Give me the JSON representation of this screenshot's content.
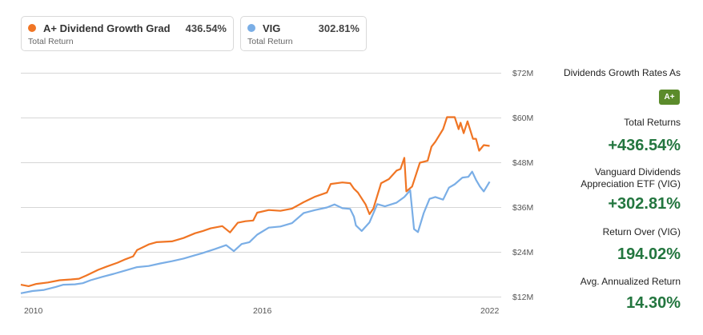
{
  "legend": [
    {
      "name": "A+ Dividend Growth Grad",
      "value": "436.54%",
      "sublabel": "Total Return",
      "color": "#f07524"
    },
    {
      "name": "VIG",
      "value": "302.81%",
      "sublabel": "Total Return",
      "color": "#7aaee6"
    }
  ],
  "sidebar": {
    "grade_label": "Dividends Growth Rates As",
    "grade_badge": "A+",
    "grade_badge_color": "#5b8b2b",
    "total_returns_label": "Total Returns",
    "total_returns_value": "+436.54%",
    "vig_label_line1": "Vanguard Dividends",
    "vig_label_line2": "Appreciation ETF (VIG)",
    "vig_value": "+302.81%",
    "return_over_label": "Return Over (VIG)",
    "return_over_value": "194.02%",
    "avg_annualized_label": "Avg. Annualized Return",
    "avg_annualized_value": "14.30%",
    "value_color": "#23763f"
  },
  "chart_data": {
    "type": "line",
    "title": "",
    "xlabel": "",
    "ylabel": "",
    "x_ticks": [
      "2010",
      "2016",
      "2022"
    ],
    "y_ticks": [
      "$12M",
      "$24M",
      "$36M",
      "$48M",
      "$60M",
      "$72M"
    ],
    "ylim": [
      12,
      72
    ],
    "xlim": [
      2009.9,
      2022.3
    ],
    "grid": true,
    "legend_position": "top",
    "series": [
      {
        "name": "A+ Dividend Growth Grad",
        "color": "#f07524",
        "x": [
          2009.9,
          2010.1,
          2010.3,
          2010.6,
          2010.9,
          2011.2,
          2011.4,
          2011.6,
          2011.9,
          2012.1,
          2012.4,
          2012.6,
          2012.8,
          2012.9,
          2013.2,
          2013.4,
          2013.8,
          2014.1,
          2014.4,
          2014.6,
          2014.8,
          2015.1,
          2015.3,
          2015.5,
          2015.7,
          2015.9,
          2016.0,
          2016.3,
          2016.6,
          2016.9,
          2017.2,
          2017.5,
          2017.8,
          2017.9,
          2018.2,
          2018.4,
          2018.5,
          2018.6,
          2018.8,
          2018.9,
          2019.0,
          2019.2,
          2019.4,
          2019.6,
          2019.7,
          2019.8,
          2019.85,
          2020.0,
          2020.2,
          2020.4,
          2020.5,
          2020.6,
          2020.8,
          2020.9,
          2021.1,
          2021.2,
          2021.25,
          2021.33,
          2021.43,
          2021.57,
          2021.65,
          2021.73,
          2021.85,
          2022.0
        ],
        "values": [
          15.2,
          14.8,
          15.4,
          15.8,
          16.4,
          16.6,
          16.8,
          17.7,
          19.2,
          20.0,
          21.1,
          22.0,
          22.8,
          24.5,
          26.0,
          26.6,
          26.8,
          27.7,
          29.0,
          29.6,
          30.3,
          30.9,
          29.2,
          31.8,
          32.2,
          32.4,
          34.5,
          35.2,
          35.0,
          35.6,
          37.3,
          38.8,
          39.9,
          42.2,
          42.6,
          42.4,
          40.9,
          39.9,
          36.7,
          34.1,
          35.6,
          42.4,
          43.5,
          45.8,
          46.2,
          49.2,
          40.2,
          41.5,
          47.9,
          48.4,
          52.2,
          53.5,
          56.9,
          60.1,
          60.1,
          56.9,
          58.6,
          55.8,
          59.0,
          54.3,
          54.3,
          51.1,
          52.6,
          52.4
        ]
      },
      {
        "name": "VIG",
        "color": "#7aaee6",
        "x": [
          2009.9,
          2010.2,
          2010.5,
          2010.8,
          2011.0,
          2011.3,
          2011.5,
          2011.7,
          2012.0,
          2012.3,
          2012.6,
          2012.9,
          2013.2,
          2013.5,
          2013.8,
          2014.1,
          2014.4,
          2014.6,
          2014.9,
          2015.2,
          2015.4,
          2015.6,
          2015.8,
          2016.0,
          2016.3,
          2016.6,
          2016.9,
          2017.2,
          2017.5,
          2017.8,
          2018.0,
          2018.2,
          2018.4,
          2018.5,
          2018.55,
          2018.7,
          2018.9,
          2019.1,
          2019.3,
          2019.6,
          2019.8,
          2019.95,
          2020.05,
          2020.15,
          2020.3,
          2020.45,
          2020.6,
          2020.8,
          2020.95,
          2021.1,
          2021.3,
          2021.45,
          2021.55,
          2021.65,
          2021.75,
          2021.85,
          2022.0
        ],
        "values": [
          12.9,
          13.5,
          13.8,
          14.6,
          15.2,
          15.3,
          15.6,
          16.4,
          17.3,
          18.1,
          19.0,
          19.9,
          20.2,
          20.9,
          21.5,
          22.2,
          23.1,
          23.7,
          24.7,
          25.8,
          24.2,
          26.1,
          26.6,
          28.6,
          30.5,
          30.8,
          31.7,
          34.4,
          35.2,
          35.9,
          36.7,
          35.7,
          35.5,
          33.4,
          31.1,
          29.6,
          31.9,
          36.8,
          36.2,
          37.2,
          38.7,
          40.5,
          30.1,
          29.3,
          34.4,
          38.2,
          38.7,
          38.0,
          41.2,
          42.1,
          43.9,
          44.1,
          45.5,
          43.3,
          41.5,
          40.2,
          42.8
        ]
      }
    ]
  }
}
